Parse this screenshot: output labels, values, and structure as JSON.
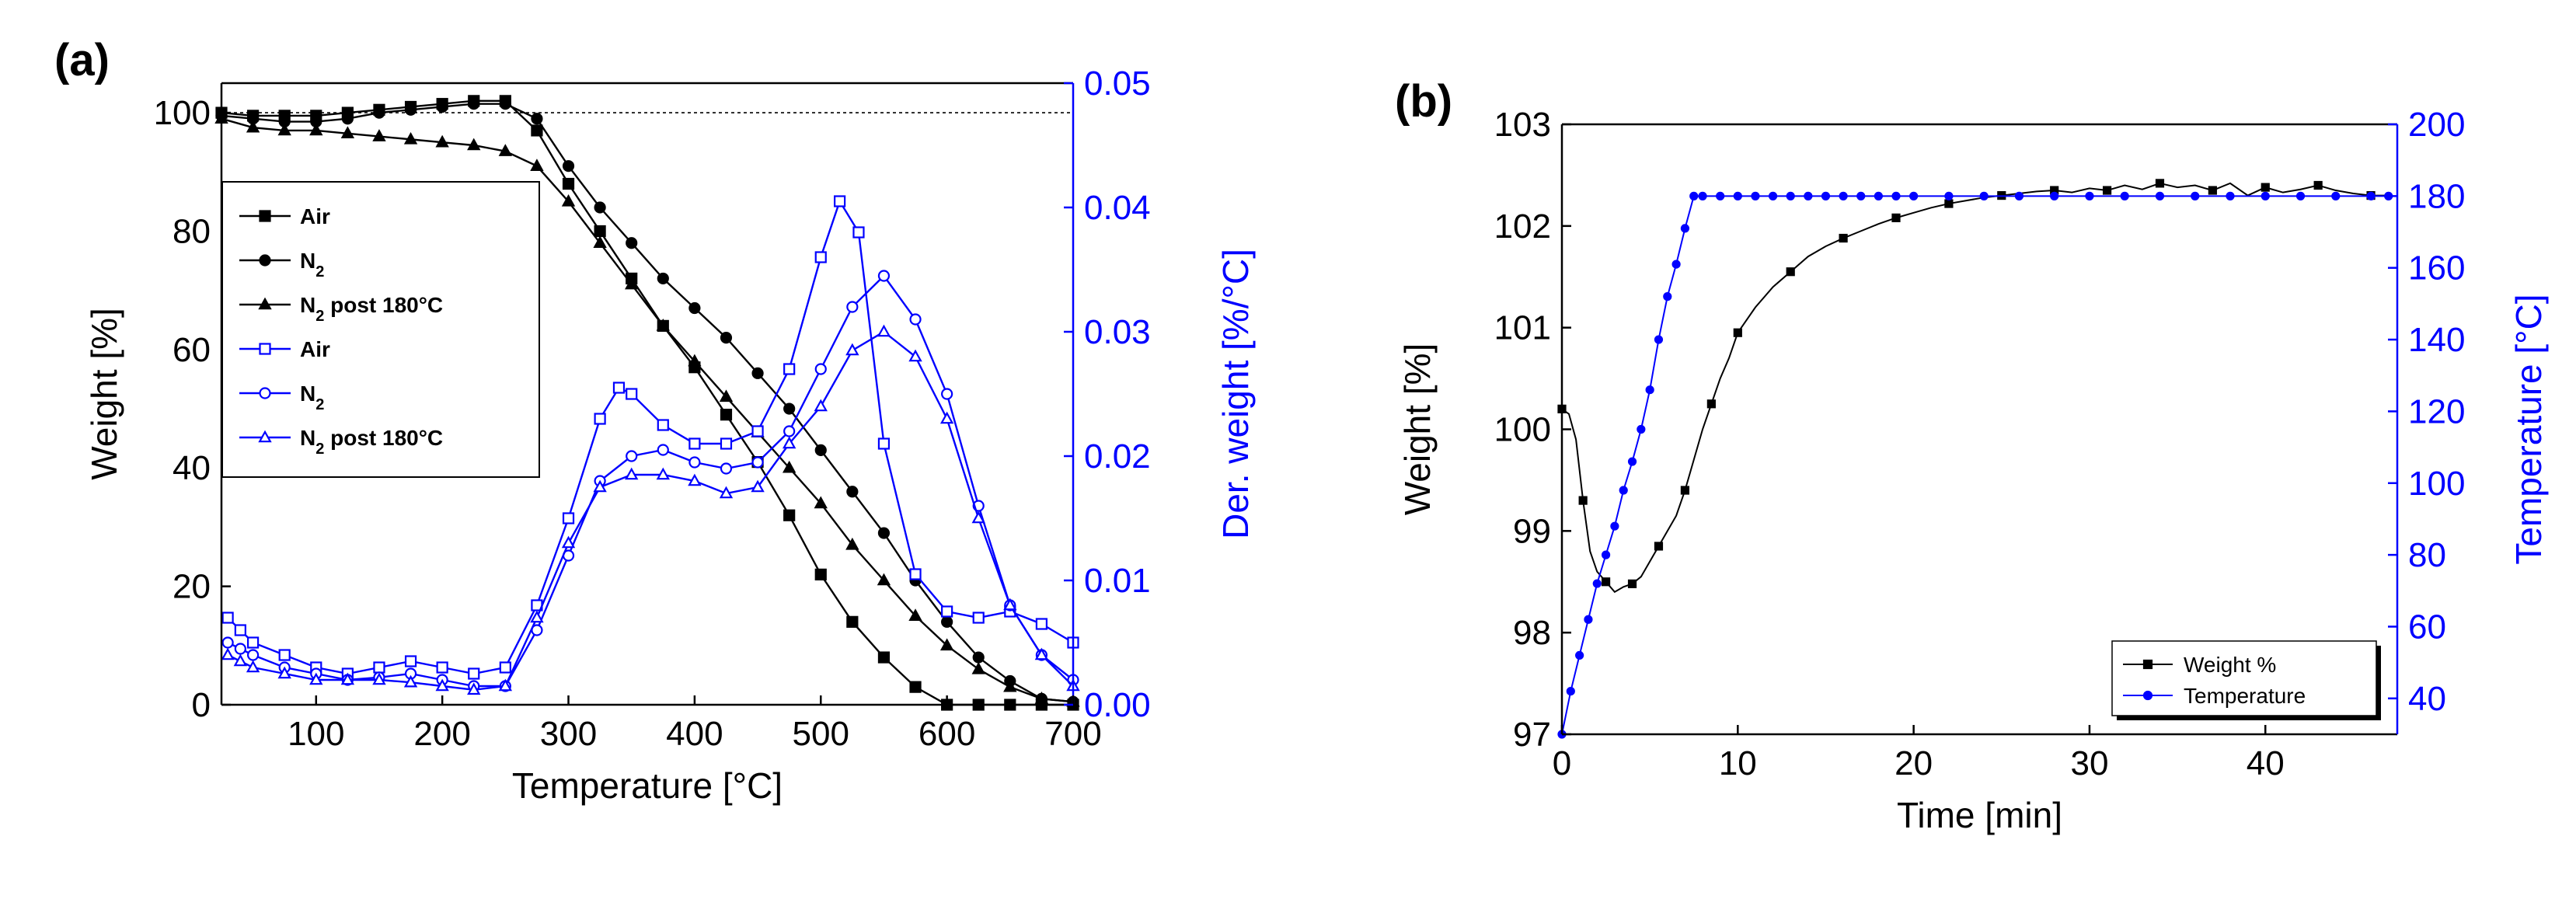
{
  "chart_data": [
    {
      "panel_label": "(a)",
      "type": "line",
      "xlabel": "Temperature [°C]",
      "ylabel_left": "Weight [%]",
      "ylabel_right": "Der. weight [%/°C]",
      "xlim": [
        25,
        700
      ],
      "ylim_left": [
        0,
        105
      ],
      "ylim_right": [
        0,
        0.05
      ],
      "xticks": [
        100,
        200,
        300,
        400,
        500,
        600,
        700
      ],
      "yticks_left": [
        0,
        20,
        40,
        60,
        80,
        100
      ],
      "yticks_right": [
        "0.00",
        "0.01",
        "0.02",
        "0.03",
        "0.04",
        "0.05"
      ],
      "reference_line": {
        "axis": "left",
        "y": 100,
        "style": "dashed"
      },
      "colors": {
        "weight": "#000000",
        "derivative": "#0000ff"
      },
      "legend_position": "middle-left",
      "series": [
        {
          "name": "Air",
          "axis": "left",
          "marker": "square",
          "filled": true,
          "x": [
            25,
            50,
            75,
            100,
            125,
            150,
            175,
            200,
            225,
            250,
            275,
            300,
            325,
            350,
            375,
            400,
            425,
            450,
            475,
            500,
            525,
            550,
            575,
            600,
            625,
            650,
            675,
            700
          ],
          "y": [
            100,
            99.5,
            99.5,
            99.5,
            100,
            100.5,
            101,
            101.5,
            102,
            102,
            97,
            88,
            80,
            72,
            64,
            57,
            49,
            41,
            32,
            22,
            14,
            8,
            3,
            0,
            0,
            0,
            0,
            0
          ]
        },
        {
          "name": "N",
          "sub": "2",
          "axis": "left",
          "marker": "circle",
          "filled": true,
          "x": [
            25,
            50,
            75,
            100,
            125,
            150,
            175,
            200,
            225,
            250,
            275,
            300,
            325,
            350,
            375,
            400,
            425,
            450,
            475,
            500,
            525,
            550,
            575,
            600,
            625,
            650,
            675,
            700
          ],
          "y": [
            99.5,
            99,
            98.5,
            98.5,
            99,
            100,
            100.5,
            101,
            101.5,
            101.5,
            99,
            91,
            84,
            78,
            72,
            67,
            62,
            56,
            50,
            43,
            36,
            29,
            21,
            14,
            8,
            4,
            1,
            0.5
          ]
        },
        {
          "name": "N",
          "sub": "2",
          "suffix": " post 180°C",
          "axis": "left",
          "marker": "triangle",
          "filled": true,
          "x": [
            25,
            50,
            75,
            100,
            125,
            150,
            175,
            200,
            225,
            250,
            275,
            300,
            325,
            350,
            375,
            400,
            425,
            450,
            475,
            500,
            525,
            550,
            575,
            600,
            625,
            650,
            675,
            700
          ],
          "y": [
            99,
            97.5,
            97,
            97,
            96.5,
            96,
            95.5,
            95,
            94.5,
            93.5,
            91,
            85,
            78,
            71,
            64,
            58,
            52,
            46,
            40,
            34,
            27,
            21,
            15,
            10,
            6,
            3,
            1,
            0.5
          ]
        },
        {
          "name": "Air",
          "axis": "right",
          "marker": "square",
          "filled": false,
          "x": [
            30,
            40,
            50,
            75,
            100,
            125,
            150,
            175,
            200,
            225,
            250,
            275,
            300,
            325,
            340,
            350,
            375,
            400,
            425,
            450,
            475,
            500,
            515,
            530,
            550,
            575,
            600,
            625,
            650,
            675,
            700
          ],
          "y": [
            0.007,
            0.006,
            0.005,
            0.004,
            0.003,
            0.0025,
            0.003,
            0.0035,
            0.003,
            0.0025,
            0.003,
            0.008,
            0.015,
            0.023,
            0.0255,
            0.025,
            0.0225,
            0.021,
            0.021,
            0.022,
            0.027,
            0.036,
            0.0405,
            0.038,
            0.021,
            0.0105,
            0.0075,
            0.007,
            0.0075,
            0.0065,
            0.005
          ]
        },
        {
          "name": "N",
          "sub": "2",
          "axis": "right",
          "marker": "circle",
          "filled": false,
          "x": [
            30,
            40,
            50,
            75,
            100,
            125,
            150,
            175,
            200,
            225,
            250,
            275,
            300,
            325,
            350,
            375,
            400,
            425,
            450,
            475,
            500,
            525,
            550,
            575,
            600,
            625,
            650,
            675,
            700
          ],
          "y": [
            0.005,
            0.0045,
            0.004,
            0.003,
            0.0025,
            0.002,
            0.0022,
            0.0025,
            0.002,
            0.0015,
            0.0015,
            0.006,
            0.012,
            0.018,
            0.02,
            0.0205,
            0.0195,
            0.019,
            0.0195,
            0.022,
            0.027,
            0.032,
            0.0345,
            0.031,
            0.025,
            0.016,
            0.008,
            0.004,
            0.002
          ]
        },
        {
          "name": "N",
          "sub": "2",
          "suffix": " post 180°C",
          "axis": "right",
          "marker": "triangle",
          "filled": false,
          "x": [
            30,
            40,
            50,
            75,
            100,
            125,
            150,
            175,
            200,
            225,
            250,
            275,
            300,
            325,
            350,
            375,
            400,
            425,
            450,
            475,
            500,
            525,
            550,
            575,
            600,
            625,
            650,
            675,
            700
          ],
          "y": [
            0.004,
            0.0035,
            0.003,
            0.0025,
            0.002,
            0.002,
            0.002,
            0.0018,
            0.0015,
            0.0012,
            0.0015,
            0.007,
            0.013,
            0.0175,
            0.0185,
            0.0185,
            0.018,
            0.017,
            0.0175,
            0.021,
            0.024,
            0.0285,
            0.03,
            0.028,
            0.023,
            0.015,
            0.008,
            0.004,
            0.0015
          ]
        }
      ]
    },
    {
      "panel_label": "(b)",
      "type": "line",
      "xlabel": "Time [min]",
      "ylabel_left": "Weight [%]",
      "ylabel_right": "Temperature [°C]",
      "xlim": [
        0,
        47.5
      ],
      "ylim_left": [
        97,
        103
      ],
      "ylim_right": [
        30,
        200
      ],
      "xticks": [
        0,
        10,
        20,
        30,
        40
      ],
      "yticks_left": [
        97,
        98,
        99,
        100,
        101,
        102,
        103
      ],
      "yticks_right": [
        40,
        60,
        80,
        100,
        120,
        140,
        160,
        180,
        200
      ],
      "colors": {
        "weight": "#000000",
        "temperature": "#0000ff"
      },
      "legend_position": "bottom-right",
      "series": [
        {
          "name": "Weight %",
          "axis": "left",
          "marker": "square",
          "filled": true,
          "x": [
            0,
            0.4,
            0.8,
            1.2,
            1.6,
            2,
            2.5,
            3,
            3.5,
            4,
            4.5,
            5,
            5.5,
            6,
            6.5,
            7,
            7.5,
            8,
            8.5,
            9,
            9.5,
            10,
            11,
            12,
            13,
            14,
            15,
            16,
            17,
            18,
            19,
            20,
            21,
            22,
            23,
            24,
            25,
            26,
            27,
            28,
            29,
            30,
            31,
            32,
            33,
            34,
            35,
            36,
            37,
            38,
            39,
            40,
            41,
            42,
            43,
            44,
            45,
            46,
            47
          ],
          "y": [
            100.2,
            100.15,
            99.9,
            99.3,
            98.8,
            98.6,
            98.5,
            98.4,
            98.45,
            98.48,
            98.55,
            98.7,
            98.85,
            99.0,
            99.15,
            99.4,
            99.7,
            100.0,
            100.25,
            100.5,
            100.7,
            100.95,
            101.2,
            101.4,
            101.55,
            101.7,
            101.8,
            101.88,
            101.95,
            102.02,
            102.08,
            102.13,
            102.18,
            102.22,
            102.25,
            102.28,
            102.3,
            102.32,
            102.34,
            102.35,
            102.33,
            102.37,
            102.35,
            102.4,
            102.36,
            102.42,
            102.38,
            102.4,
            102.35,
            102.42,
            102.3,
            102.38,
            102.33,
            102.36,
            102.4,
            102.35,
            102.32,
            102.3,
            102.3
          ]
        },
        {
          "name": "Temperature",
          "axis": "right",
          "marker": "circle",
          "filled": true,
          "x": [
            0,
            0.5,
            1,
            1.5,
            2,
            2.5,
            3,
            3.5,
            4,
            4.5,
            5,
            5.5,
            6,
            6.5,
            7,
            7.5,
            8,
            9,
            10,
            11,
            12,
            13,
            14,
            15,
            16,
            17,
            18,
            19,
            20,
            22,
            24,
            26,
            28,
            30,
            32,
            34,
            36,
            38,
            40,
            42,
            44,
            46,
            47
          ],
          "y": [
            30,
            42,
            52,
            62,
            72,
            80,
            88,
            98,
            106,
            115,
            126,
            140,
            152,
            161,
            171,
            180,
            180,
            180,
            180,
            180,
            180,
            180,
            180,
            180,
            180,
            180,
            180,
            180,
            180,
            180,
            180,
            180,
            180,
            180,
            180,
            180,
            180,
            180,
            180,
            180,
            180,
            180,
            180
          ]
        }
      ]
    }
  ]
}
